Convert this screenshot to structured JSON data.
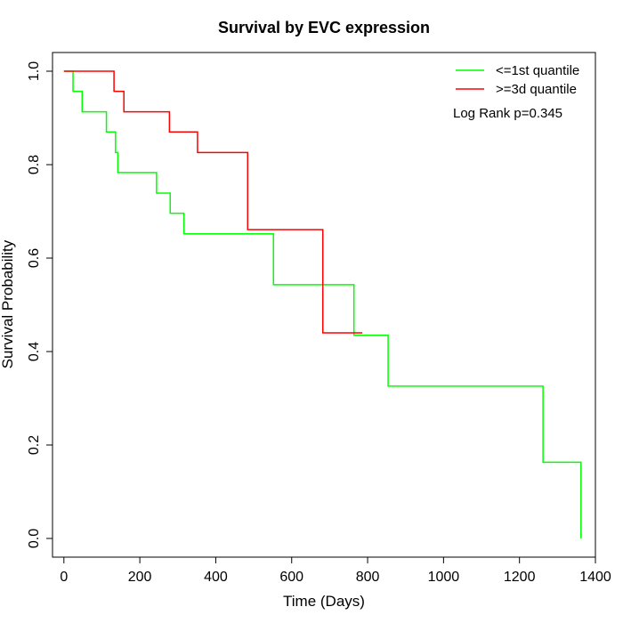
{
  "chart_data": {
    "type": "line",
    "title": "Survival by EVC expression",
    "xlabel": "Time (Days)",
    "ylabel": "Survival Probability",
    "xlim": [
      -30,
      1400
    ],
    "ylim": [
      -0.04,
      1.04
    ],
    "xticks": [
      0,
      200,
      400,
      600,
      800,
      1000,
      1200,
      1400
    ],
    "yticks": [
      0.0,
      0.2,
      0.4,
      0.6,
      0.8,
      1.0
    ],
    "xtick_labels": [
      "0",
      "200",
      "400",
      "600",
      "800",
      "1000",
      "1200",
      "1400"
    ],
    "ytick_labels": [
      "0.0",
      "0.2",
      "0.4",
      "0.6",
      "0.8",
      "1.0"
    ],
    "grid": false,
    "legend_position": "top-right",
    "annotation": "Log Rank p=0.345",
    "series": [
      {
        "name": "<=1st quantile",
        "color": "#00ff00",
        "step": true,
        "x": [
          0,
          24,
          48,
          112,
          136,
          142,
          244,
          280,
          316,
          552,
          764,
          854,
          1262,
          1362,
          1362
        ],
        "y": [
          1.0,
          0.957,
          0.913,
          0.87,
          0.826,
          0.783,
          0.739,
          0.696,
          0.652,
          0.543,
          0.435,
          0.326,
          0.163,
          0.163,
          0.0
        ]
      },
      {
        "name": ">=3d quantile",
        "color": "#ff0000",
        "step": true,
        "x": [
          0,
          132,
          158,
          278,
          352,
          484,
          682,
          786
        ],
        "y": [
          1.0,
          0.957,
          0.913,
          0.87,
          0.826,
          0.661,
          0.44,
          0.44
        ]
      }
    ]
  }
}
